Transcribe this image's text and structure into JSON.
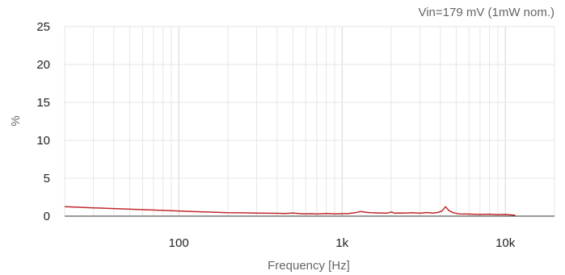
{
  "chart_data": {
    "type": "line",
    "title": "",
    "annotation": "Vin=179 mV (1mW nom.)",
    "xlabel": "Frequency [Hz]",
    "ylabel": "%",
    "x_scale": "log",
    "xlim": [
      20,
      20000
    ],
    "ylim": [
      0,
      25
    ],
    "x_ticks": [
      100,
      1000,
      10000
    ],
    "x_tick_labels": [
      "100",
      "1k",
      "10k"
    ],
    "y_ticks": [
      0,
      5,
      10,
      15,
      20,
      25
    ],
    "y_tick_labels": [
      "0",
      "5",
      "10",
      "15",
      "20",
      "25"
    ],
    "grid": true,
    "legend": "none",
    "colors": {
      "series": "#c0282d",
      "grid": "#e6e6e6",
      "axis": "#333333"
    },
    "series": [
      {
        "color": "#c0282d",
        "x": [
          20,
          30,
          50,
          80,
          120,
          170,
          200,
          250,
          300,
          350,
          400,
          450,
          500,
          550,
          600,
          650,
          700,
          800,
          900,
          1000,
          1100,
          1200,
          1300,
          1400,
          1500,
          1700,
          1900,
          2000,
          2100,
          2200,
          2400,
          2700,
          3000,
          3300,
          3600,
          3900,
          4100,
          4300,
          4500,
          4800,
          5200,
          5700,
          6300,
          7000,
          8000,
          9000,
          10000,
          11000,
          11500
        ],
        "y": [
          1.25,
          1.1,
          0.92,
          0.75,
          0.62,
          0.5,
          0.45,
          0.44,
          0.4,
          0.38,
          0.37,
          0.35,
          0.42,
          0.33,
          0.3,
          0.32,
          0.28,
          0.35,
          0.3,
          0.32,
          0.35,
          0.45,
          0.62,
          0.5,
          0.45,
          0.42,
          0.4,
          0.55,
          0.38,
          0.42,
          0.4,
          0.45,
          0.38,
          0.48,
          0.4,
          0.5,
          0.7,
          1.25,
          0.75,
          0.45,
          0.3,
          0.28,
          0.25,
          0.22,
          0.25,
          0.2,
          0.22,
          0.15,
          0.12
        ]
      }
    ]
  }
}
